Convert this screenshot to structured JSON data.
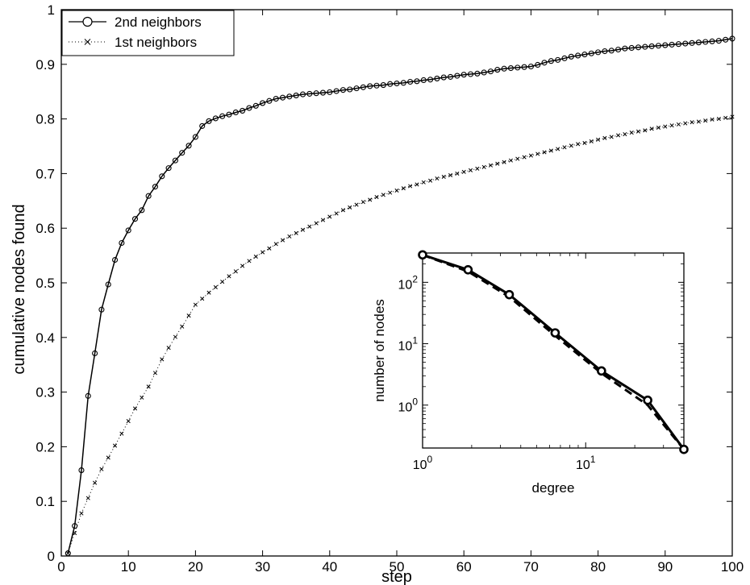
{
  "chart_data": [
    {
      "type": "line",
      "title": "",
      "xlabel": "step",
      "ylabel": "cumulative nodes found",
      "xlim": [
        0,
        100
      ],
      "ylim": [
        0,
        1
      ],
      "xticks": [
        0,
        10,
        20,
        30,
        40,
        50,
        60,
        70,
        80,
        90,
        100
      ],
      "xtick_labels": [
        "0",
        "10",
        "20",
        "30",
        "40",
        "50",
        "60",
        "70",
        "80",
        "90",
        "100"
      ],
      "yticks": [
        0,
        0.1,
        0.2,
        0.3,
        0.4,
        0.5,
        0.6,
        0.7,
        0.8,
        0.9,
        1
      ],
      "ytick_labels": [
        "0",
        "0.1",
        "0.2",
        "0.3",
        "0.4",
        "0.5",
        "0.6",
        "0.7",
        "0.8",
        "0.9",
        "1"
      ],
      "grid": false,
      "legend_position": "top-left",
      "series": [
        {
          "name": "2nd neighbors",
          "style": "solid",
          "marker": "circle",
          "color": "#000000",
          "x": [
            1,
            2,
            3,
            4,
            5,
            6,
            7,
            8,
            9,
            10,
            11,
            12,
            13,
            14,
            15,
            16,
            17,
            18,
            19,
            20,
            21,
            22,
            23,
            24,
            25,
            26,
            27,
            28,
            29,
            30,
            31,
            32,
            33,
            34,
            35,
            36,
            37,
            38,
            39,
            40,
            41,
            42,
            43,
            44,
            45,
            46,
            47,
            48,
            49,
            50,
            51,
            52,
            53,
            54,
            55,
            56,
            57,
            58,
            59,
            60,
            61,
            62,
            63,
            64,
            65,
            66,
            67,
            68,
            69,
            70,
            71,
            72,
            73,
            74,
            75,
            76,
            77,
            78,
            79,
            80,
            81,
            82,
            83,
            84,
            85,
            86,
            87,
            88,
            89,
            90,
            91,
            92,
            93,
            94,
            95,
            96,
            97,
            98,
            99,
            100
          ],
          "y": [
            0.005,
            0.055,
            0.157,
            0.293,
            0.371,
            0.451,
            0.497,
            0.542,
            0.573,
            0.596,
            0.617,
            0.633,
            0.659,
            0.676,
            0.695,
            0.71,
            0.724,
            0.738,
            0.751,
            0.767,
            0.787,
            0.796,
            0.801,
            0.805,
            0.808,
            0.812,
            0.815,
            0.82,
            0.824,
            0.829,
            0.833,
            0.837,
            0.839,
            0.841,
            0.843,
            0.845,
            0.846,
            0.847,
            0.848,
            0.849,
            0.851,
            0.853,
            0.854,
            0.856,
            0.858,
            0.86,
            0.861,
            0.862,
            0.864,
            0.865,
            0.866,
            0.868,
            0.869,
            0.871,
            0.872,
            0.874,
            0.876,
            0.877,
            0.879,
            0.881,
            0.882,
            0.883,
            0.885,
            0.887,
            0.89,
            0.892,
            0.893,
            0.894,
            0.895,
            0.896,
            0.899,
            0.903,
            0.906,
            0.908,
            0.911,
            0.914,
            0.916,
            0.918,
            0.92,
            0.922,
            0.924,
            0.925,
            0.927,
            0.929,
            0.93,
            0.931,
            0.932,
            0.933,
            0.934,
            0.935,
            0.936,
            0.937,
            0.938,
            0.939,
            0.94,
            0.941,
            0.942,
            0.943,
            0.945,
            0.947
          ]
        },
        {
          "name": "1st neighbors",
          "style": "dotted",
          "marker": "x",
          "color": "#000000",
          "x": [
            1,
            2,
            3,
            4,
            5,
            6,
            7,
            8,
            9,
            10,
            11,
            12,
            13,
            14,
            15,
            16,
            17,
            18,
            19,
            20,
            21,
            22,
            23,
            24,
            25,
            26,
            27,
            28,
            29,
            30,
            31,
            32,
            33,
            34,
            35,
            36,
            37,
            38,
            39,
            40,
            41,
            42,
            43,
            44,
            45,
            46,
            47,
            48,
            49,
            50,
            51,
            52,
            53,
            54,
            55,
            56,
            57,
            58,
            59,
            60,
            61,
            62,
            63,
            64,
            65,
            66,
            67,
            68,
            69,
            70,
            71,
            72,
            73,
            74,
            75,
            76,
            77,
            78,
            79,
            80,
            81,
            82,
            83,
            84,
            85,
            86,
            87,
            88,
            89,
            90,
            91,
            92,
            93,
            94,
            95,
            96,
            97,
            98,
            99,
            100
          ],
          "y": [
            0.005,
            0.042,
            0.078,
            0.106,
            0.134,
            0.159,
            0.18,
            0.202,
            0.224,
            0.247,
            0.27,
            0.29,
            0.31,
            0.335,
            0.36,
            0.381,
            0.401,
            0.42,
            0.44,
            0.46,
            0.471,
            0.482,
            0.492,
            0.502,
            0.512,
            0.521,
            0.531,
            0.54,
            0.548,
            0.556,
            0.563,
            0.571,
            0.578,
            0.585,
            0.591,
            0.597,
            0.603,
            0.609,
            0.615,
            0.621,
            0.627,
            0.633,
            0.638,
            0.643,
            0.648,
            0.652,
            0.657,
            0.661,
            0.665,
            0.669,
            0.673,
            0.677,
            0.68,
            0.684,
            0.687,
            0.691,
            0.694,
            0.697,
            0.7,
            0.703,
            0.706,
            0.709,
            0.712,
            0.715,
            0.718,
            0.721,
            0.724,
            0.727,
            0.73,
            0.733,
            0.736,
            0.739,
            0.742,
            0.745,
            0.748,
            0.751,
            0.754,
            0.756,
            0.759,
            0.762,
            0.765,
            0.767,
            0.77,
            0.772,
            0.775,
            0.777,
            0.779,
            0.782,
            0.784,
            0.786,
            0.788,
            0.79,
            0.792,
            0.794,
            0.795,
            0.797,
            0.799,
            0.8,
            0.802,
            0.804
          ]
        }
      ]
    },
    {
      "type": "line",
      "title": "",
      "xlabel": "degree",
      "ylabel": "number of nodes",
      "xscale": "log",
      "yscale": "log",
      "xlim": [
        1,
        40
      ],
      "ylim": [
        0.2,
        300
      ],
      "xticks": [
        1,
        10
      ],
      "xtick_labels": [
        {
          "base": "10",
          "exp": "0"
        },
        {
          "base": "10",
          "exp": "1"
        }
      ],
      "yticks": [
        1,
        10,
        100
      ],
      "ytick_labels": [
        {
          "base": "10",
          "exp": "0"
        },
        {
          "base": "10",
          "exp": "1"
        },
        {
          "base": "10",
          "exp": "2"
        }
      ],
      "grid": false,
      "series": [
        {
          "style": "solid",
          "marker": "circle",
          "color": "#000000",
          "x": [
            1,
            1.9,
            3.4,
            6.5,
            12.5,
            24,
            45
          ],
          "y": [
            280,
            160,
            63,
            15,
            3.6,
            1.2,
            0.19
          ]
        },
        {
          "style": "dashed",
          "marker": "none",
          "color": "#000000",
          "x": [
            1,
            1.9,
            3.4,
            6.5,
            12.5,
            24,
            45
          ],
          "y": [
            280,
            150,
            58,
            13.5,
            3.3,
            1.0,
            0.19
          ]
        }
      ]
    }
  ]
}
